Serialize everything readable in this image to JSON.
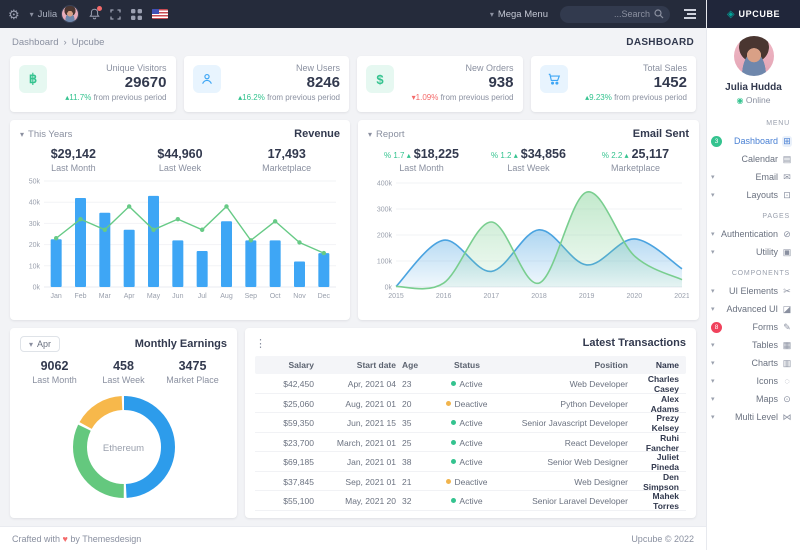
{
  "navbar": {
    "user_name": "Julia",
    "mega_menu_label": "Mega Menu",
    "search_placeholder": "...Search",
    "brand": "UPCUBE",
    "icons": [
      "gear-icon",
      "bell-icon",
      "fullscreen-icon",
      "apps-grid-icon",
      "us-flag-icon",
      "search-icon",
      "hamburger-icon"
    ]
  },
  "breadcrumb": {
    "items": [
      "Dashboard",
      "Upcube"
    ],
    "separator": "›",
    "page_label": "DASHBOARD"
  },
  "stat_cards": [
    {
      "icon": "bitcoin",
      "color": "green",
      "title": "Unique Visitors",
      "value": "29670",
      "delta": "11.7%",
      "delta_dir": "up",
      "note": "from previous period"
    },
    {
      "icon": "user",
      "color": "blue",
      "title": "New Users",
      "value": "8246",
      "delta": "16.2%",
      "delta_dir": "up",
      "note": "from previous period"
    },
    {
      "icon": "dollar",
      "color": "green",
      "title": "New Orders",
      "value": "938",
      "delta": "1.09%",
      "delta_dir": "down",
      "note": "from previous period"
    },
    {
      "icon": "cart",
      "color": "blue",
      "title": "Total Sales",
      "value": "1452",
      "delta": "9.23%",
      "delta_dir": "up",
      "note": "from previous period"
    }
  ],
  "revenue": {
    "filter": "This Years",
    "title": "Revenue",
    "stats": [
      {
        "value": "$29,142",
        "label": "Last Month"
      },
      {
        "value": "$44,960",
        "label": "Last Week"
      },
      {
        "value": "17,493",
        "label": "Marketplace"
      }
    ]
  },
  "email_sent": {
    "filter": "Report",
    "title": "Email Sent",
    "stats": [
      {
        "pct": "% 1.7 ▴",
        "value": "$18,225",
        "label": "Last Month"
      },
      {
        "pct": "% 1.2 ▴",
        "value": "$34,856",
        "label": "Last Week"
      },
      {
        "pct": "% 2.2 ▴",
        "value": "25,117",
        "label": "Marketplace"
      }
    ]
  },
  "monthly_earnings": {
    "filter": "Apr",
    "title": "Monthly Earnings",
    "stats": [
      {
        "value": "9062",
        "label": "Last Month"
      },
      {
        "value": "458",
        "label": "Last Week"
      },
      {
        "value": "3475",
        "label": "Market Place"
      }
    ],
    "donut_center_label": "Ethereum"
  },
  "transactions": {
    "title": "Latest Transactions",
    "columns": [
      "Salary",
      "Start date",
      "Age",
      "Status",
      "Position",
      "Name"
    ],
    "rows": [
      {
        "salary": "$42,450",
        "start_date": "Apr, 2021 04",
        "age": "23",
        "status": "Active",
        "position": "Web Developer",
        "name": "Charles Casey"
      },
      {
        "salary": "$25,060",
        "start_date": "Aug, 2021 01",
        "age": "20",
        "status": "Deactive",
        "position": "Python Developer",
        "name": "Alex Adams"
      },
      {
        "salary": "$59,350",
        "start_date": "Jun, 2021 15",
        "age": "35",
        "status": "Active",
        "position": "Senior Javascript Developer",
        "name": "Prezy Kelsey"
      },
      {
        "salary": "$23,700",
        "start_date": "March, 2021 01",
        "age": "25",
        "status": "Active",
        "position": "React Developer",
        "name": "Ruhi Fancher"
      },
      {
        "salary": "$69,185",
        "start_date": "Jan, 2021 01",
        "age": "38",
        "status": "Active",
        "position": "Senior Web Designer",
        "name": "Juliet Pineda"
      },
      {
        "salary": "$37,845",
        "start_date": "Sep, 2021 01",
        "age": "21",
        "status": "Deactive",
        "position": "Web Designer",
        "name": "Den Simpson"
      },
      {
        "salary": "$55,100",
        "start_date": "May, 2021 20",
        "age": "32",
        "status": "Active",
        "position": "Senior Laravel Developer",
        "name": "Mahek Torres"
      }
    ],
    "status_colors": {
      "Active": "#34c38f",
      "Deactive": "#f1b44c"
    }
  },
  "sidebar": {
    "profile": {
      "name": "Julia Hudda",
      "status": "Online"
    },
    "menu": [
      {
        "type": "section",
        "label": "MENU"
      },
      {
        "type": "item",
        "label": "Dashboard",
        "icon": "dashboard-icon",
        "badge": "3",
        "badge_color": "green",
        "active": true
      },
      {
        "type": "item",
        "label": "Calendar",
        "icon": "calendar-icon"
      },
      {
        "type": "item",
        "label": "Email",
        "icon": "email-icon",
        "chevron": true
      },
      {
        "type": "item",
        "label": "Layouts",
        "icon": "layouts-icon",
        "chevron": true
      },
      {
        "type": "section",
        "label": "PAGES"
      },
      {
        "type": "item",
        "label": "Authentication",
        "icon": "authentication-icon",
        "chevron": true
      },
      {
        "type": "item",
        "label": "Utility",
        "icon": "utility-icon",
        "chevron": true
      },
      {
        "type": "section",
        "label": "COMPONENTS"
      },
      {
        "type": "item",
        "label": "UI Elements",
        "icon": "ui-elements-icon",
        "chevron": true
      },
      {
        "type": "item",
        "label": "Advanced UI",
        "icon": "advanced-ui-icon",
        "chevron": true
      },
      {
        "type": "item",
        "label": "Forms",
        "icon": "forms-icon",
        "badge": "8",
        "badge_color": "red"
      },
      {
        "type": "item",
        "label": "Tables",
        "icon": "tables-icon",
        "chevron": true
      },
      {
        "type": "item",
        "label": "Charts",
        "icon": "charts-icon",
        "chevron": true
      },
      {
        "type": "item",
        "label": "Icons",
        "icon": "icons-icon",
        "chevron": true
      },
      {
        "type": "item",
        "label": "Maps",
        "icon": "maps-icon",
        "chevron": true
      },
      {
        "type": "item",
        "label": "Multi Level",
        "icon": "multi-level-icon",
        "chevron": true
      }
    ]
  },
  "footer": {
    "left_prefix": "Crafted with",
    "heart": "♥",
    "left_suffix": "by Themesdesign",
    "right": "Upcube © 2022"
  },
  "chart_data": [
    {
      "id": "revenue",
      "type": "bar",
      "title": "Revenue",
      "categories": [
        "Jan",
        "Feb",
        "Mar",
        "Apr",
        "May",
        "Jun",
        "Jul",
        "Aug",
        "Sep",
        "Oct",
        "Nov",
        "Dec"
      ],
      "series": [
        {
          "name": "Revenue bars",
          "type": "bar",
          "color": "#3ea6f5",
          "values": [
            22500,
            42000,
            35000,
            27000,
            43000,
            22000,
            17000,
            31000,
            22000,
            22000,
            12000,
            16000
          ]
        },
        {
          "name": "Trend line",
          "type": "line",
          "color": "#67ca86",
          "values": [
            23000,
            32000,
            27000,
            38000,
            27000,
            32000,
            27000,
            38000,
            22000,
            31000,
            21000,
            16000
          ]
        }
      ],
      "ylim": [
        0,
        50000
      ],
      "ytick_step": 10000,
      "ytick_labels": [
        "0k",
        "10k",
        "20k",
        "30k",
        "40k",
        "50k"
      ],
      "grid": true,
      "legend": false
    },
    {
      "id": "email_sent",
      "type": "area",
      "title": "Email Sent",
      "x": [
        2015,
        2016,
        2017,
        2018,
        2019,
        2020,
        2021
      ],
      "series": [
        {
          "name": "series-blue",
          "color": "#4aa3e0",
          "values": [
            2000,
            180000,
            60000,
            220000,
            85000,
            185000,
            70000
          ]
        },
        {
          "name": "series-green",
          "color": "#79ce8f",
          "values": [
            2000,
            15000,
            250000,
            15000,
            365000,
            120000,
            28000
          ]
        }
      ],
      "ylim": [
        0,
        400000
      ],
      "ytick_step": 100000,
      "ytick_labels": [
        "0k",
        "100k",
        "200k",
        "300k",
        "400k"
      ],
      "grid": true,
      "legend": false
    },
    {
      "id": "monthly_earnings",
      "type": "pie",
      "subtype": "donut",
      "center_label": "Ethereum",
      "slices": [
        {
          "value": 50,
          "color": "#2d9ceb"
        },
        {
          "value": 33,
          "color": "#64c87e"
        },
        {
          "value": 17,
          "color": "#f7b84b"
        }
      ]
    }
  ]
}
